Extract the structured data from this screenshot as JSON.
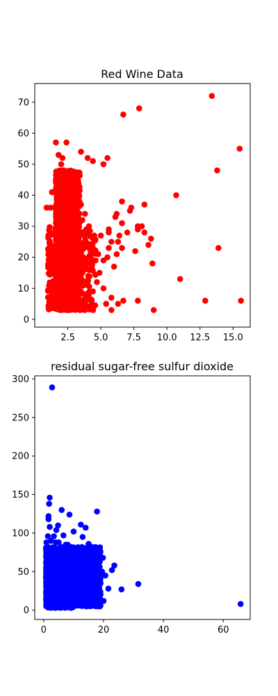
{
  "chart_data": [
    {
      "type": "scatter",
      "title": "Red Wine Data",
      "xlabel": "",
      "ylabel": "",
      "xlim": [
        0.0,
        16.3
      ],
      "ylim": [
        -2.5,
        76.0
      ],
      "xticks": [
        2.5,
        5.0,
        7.5,
        10.0,
        12.5,
        15.0
      ],
      "xtick_labels": [
        "2.5",
        "5.0",
        "7.5",
        "10.0",
        "12.5",
        "15.0"
      ],
      "yticks": [
        0,
        10,
        20,
        30,
        40,
        50,
        60,
        70
      ],
      "ytick_labels": [
        "0",
        "10",
        "20",
        "30",
        "40",
        "50",
        "60",
        "70"
      ],
      "color": "#ff0000",
      "grid": false,
      "points": [
        [
          13.4,
          72
        ],
        [
          15.5,
          55
        ],
        [
          13.8,
          48
        ],
        [
          10.7,
          40
        ],
        [
          13.9,
          23
        ],
        [
          11.0,
          13
        ],
        [
          12.9,
          6
        ],
        [
          15.6,
          6
        ],
        [
          9.0,
          3
        ],
        [
          8.9,
          18
        ],
        [
          8.8,
          26
        ],
        [
          8.6,
          24
        ],
        [
          8.3,
          37
        ],
        [
          8.3,
          28
        ],
        [
          8.1,
          30
        ],
        [
          7.9,
          68
        ],
        [
          7.8,
          30
        ],
        [
          7.8,
          29
        ],
        [
          7.6,
          22
        ],
        [
          7.8,
          6
        ],
        [
          7.3,
          36
        ],
        [
          7.2,
          35
        ],
        [
          7.0,
          28
        ],
        [
          6.7,
          66
        ],
        [
          6.6,
          38
        ],
        [
          6.6,
          31
        ],
        [
          6.6,
          23
        ],
        [
          6.7,
          6
        ],
        [
          6.4,
          27
        ],
        [
          6.3,
          25
        ],
        [
          6.2,
          34
        ],
        [
          6.2,
          21
        ],
        [
          6.3,
          5
        ],
        [
          6.1,
          33
        ],
        [
          6.0,
          17
        ],
        [
          5.8,
          25
        ],
        [
          5.8,
          7
        ],
        [
          5.8,
          3
        ],
        [
          5.6,
          29
        ],
        [
          5.6,
          28
        ],
        [
          5.6,
          23
        ],
        [
          5.5,
          52
        ],
        [
          5.5,
          20
        ],
        [
          5.4,
          5
        ],
        [
          5.2,
          50
        ],
        [
          5.2,
          19
        ],
        [
          5.2,
          10
        ],
        [
          5.0,
          27
        ],
        [
          4.9,
          15
        ],
        [
          4.8,
          21
        ],
        [
          4.7,
          12
        ],
        [
          4.6,
          19
        ],
        [
          4.5,
          27
        ],
        [
          4.4,
          51
        ],
        [
          4.4,
          26
        ],
        [
          4.4,
          9
        ],
        [
          4.3,
          21
        ],
        [
          4.3,
          4
        ],
        [
          4.2,
          16
        ],
        [
          4.1,
          30
        ],
        [
          4.1,
          23
        ],
        [
          4.1,
          7
        ],
        [
          4.0,
          52
        ],
        [
          4.0,
          18
        ],
        [
          3.9,
          29
        ],
        [
          3.9,
          12
        ],
        [
          3.8,
          34
        ],
        [
          3.8,
          25
        ],
        [
          3.8,
          3
        ],
        [
          3.6,
          32
        ],
        [
          3.6,
          15
        ],
        [
          3.5,
          54
        ],
        [
          3.5,
          37
        ],
        [
          3.5,
          9
        ],
        [
          3.4,
          23
        ],
        [
          3.3,
          6
        ],
        [
          3.2,
          34
        ],
        [
          3.2,
          20
        ],
        [
          3.1,
          28
        ],
        [
          3.1,
          11
        ],
        [
          3.0,
          18
        ],
        [
          3.0,
          4
        ]
      ],
      "dense_clusters": [
        {
          "x_range": [
            1.6,
            3.4
          ],
          "y_range": [
            3,
            48
          ],
          "count": 1400
        },
        {
          "x_range": [
            1.0,
            4.6
          ],
          "y_range": [
            3,
            30
          ],
          "count": 350
        }
      ],
      "cluster_edge_points": [
        [
          0.9,
          36
        ],
        [
          1.2,
          36
        ],
        [
          1.3,
          41
        ],
        [
          1.6,
          57
        ],
        [
          1.8,
          53
        ],
        [
          1.8,
          46
        ],
        [
          1.9,
          44
        ],
        [
          2.0,
          50
        ],
        [
          2.1,
          52
        ],
        [
          2.2,
          48
        ],
        [
          2.3,
          43
        ],
        [
          2.4,
          45
        ],
        [
          2.6,
          40
        ],
        [
          2.7,
          38
        ],
        [
          2.4,
          57
        ],
        [
          1.7,
          41
        ]
      ]
    },
    {
      "type": "scatter",
      "title": "residual sugar-free sulfur dioxide",
      "xlabel": "",
      "ylabel": "",
      "xlim": [
        -3.0,
        69.0
      ],
      "ylim": [
        -12.0,
        304.0
      ],
      "xticks": [
        0,
        20,
        40,
        60
      ],
      "xtick_labels": [
        "0",
        "20",
        "40",
        "60"
      ],
      "yticks": [
        0,
        50,
        100,
        150,
        200,
        250,
        300
      ],
      "ytick_labels": [
        "0",
        "50",
        "100",
        "150",
        "200",
        "250",
        "300"
      ],
      "color": "#0000ff",
      "grid": false,
      "points": [
        [
          2.8,
          289
        ],
        [
          65.8,
          8
        ],
        [
          31.6,
          34
        ],
        [
          26.0,
          27
        ],
        [
          17.8,
          128
        ],
        [
          6.0,
          130
        ],
        [
          2.0,
          146
        ],
        [
          1.8,
          138
        ],
        [
          1.6,
          122
        ],
        [
          1.6,
          118
        ],
        [
          8.6,
          124
        ],
        [
          12.4,
          111
        ],
        [
          10.0,
          102
        ],
        [
          14.0,
          107
        ],
        [
          4.8,
          110
        ],
        [
          4.2,
          104
        ],
        [
          2.0,
          108
        ],
        [
          3.4,
          96
        ],
        [
          1.4,
          96
        ],
        [
          2.4,
          90
        ],
        [
          4.0,
          88
        ],
        [
          6.6,
          97
        ],
        [
          7.4,
          85
        ],
        [
          13.0,
          95
        ],
        [
          15.0,
          86
        ],
        [
          18.8,
          68
        ],
        [
          19.8,
          68
        ],
        [
          23.6,
          58
        ],
        [
          22.8,
          52
        ],
        [
          20.6,
          45
        ],
        [
          21.6,
          28
        ],
        [
          20.0,
          12
        ],
        [
          1.4,
          82
        ],
        [
          4.2,
          75
        ]
      ],
      "dense_clusters": [
        {
          "x_range": [
            0.8,
            19.0
          ],
          "y_range": [
            5,
            82
          ],
          "count": 1900
        },
        {
          "x_range": [
            0.8,
            10.0
          ],
          "y_range": [
            3,
            45
          ],
          "count": 700
        }
      ],
      "cluster_edge_points": [
        [
          0.9,
          88
        ],
        [
          0.8,
          70
        ],
        [
          0.8,
          55
        ],
        [
          1.0,
          40
        ],
        [
          1.2,
          20
        ],
        [
          1.0,
          6
        ],
        [
          4.0,
          4
        ],
        [
          8.0,
          5
        ],
        [
          12.0,
          8
        ],
        [
          16.0,
          12
        ],
        [
          18.0,
          20
        ],
        [
          19.0,
          35
        ],
        [
          19.5,
          50
        ],
        [
          18.5,
          62
        ],
        [
          16.0,
          72
        ],
        [
          12.0,
          80
        ],
        [
          8.0,
          85
        ],
        [
          5.0,
          88
        ]
      ]
    }
  ]
}
